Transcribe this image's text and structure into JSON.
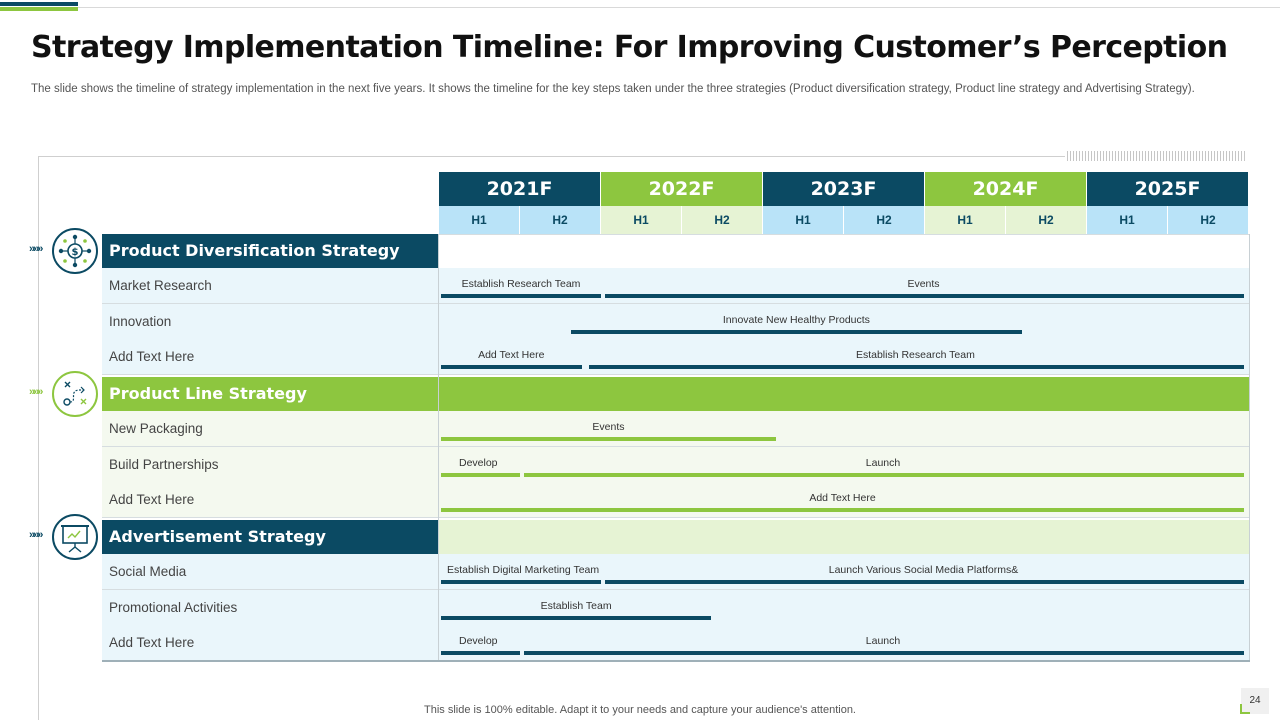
{
  "title": "Strategy Implementation Timeline: For Improving Customer’s Perception",
  "subtitle": "The slide shows the timeline of strategy implementation in the next five years. It shows the timeline for the key steps taken under the three strategies (Product diversification strategy, Product line strategy and Advertising Strategy).",
  "colors": {
    "dark": "#0b4a63",
    "green": "#8dc63f",
    "light_blue": "#b9e3f8",
    "light_green": "#e6f3d4"
  },
  "years": [
    "2021F",
    "2022F",
    "2023F",
    "2024F",
    "2025F"
  ],
  "halves": [
    "H1",
    "H2"
  ],
  "sections": [
    {
      "title": "Product Diversification Strategy",
      "icon": "dollar-network-icon",
      "arrows": "»»»",
      "rows": [
        {
          "label": "Market Research",
          "bars": [
            {
              "text": "Establish Research Team",
              "start": 0,
              "end": 1
            },
            {
              "text": "Events",
              "start": 1,
              "end": 5
            }
          ]
        },
        {
          "label": "Innovation",
          "bars": [
            {
              "text": "Innovate New Healthy Products",
              "start": 0.8,
              "end": 3.6
            }
          ]
        },
        {
          "label": "Add Text Here",
          "bars": [
            {
              "text": "Add Text Here",
              "start": 0,
              "end": 0.88
            },
            {
              "text": "Establish Research Team",
              "start": 0.9,
              "end": 5
            }
          ]
        }
      ]
    },
    {
      "title": "Product Line Strategy",
      "icon": "strategy-plan-icon",
      "arrows": "»»»",
      "rows": [
        {
          "label": "New Packaging",
          "bars": [
            {
              "text": "Events",
              "start": 0,
              "end": 2.08
            }
          ]
        },
        {
          "label": "Build Partnerships",
          "bars": [
            {
              "text": "Develop",
              "start": 0,
              "end": 0.5
            },
            {
              "text": "Launch",
              "start": 0.5,
              "end": 5
            }
          ]
        },
        {
          "label": "Add Text Here",
          "bars": [
            {
              "text": "Add Text Here",
              "start": 0,
              "end": 5
            }
          ]
        }
      ]
    },
    {
      "title": "Advertisement Strategy",
      "icon": "presentation-board-icon",
      "arrows": "»»»",
      "rows": [
        {
          "label": "Social Media",
          "bars": [
            {
              "text": "Establish Digital Marketing Team",
              "start": 0,
              "end": 1
            },
            {
              "text": "Launch Various Social Media Platforms&",
              "start": 1,
              "end": 5
            }
          ]
        },
        {
          "label": "Promotional Activities",
          "bars": [
            {
              "text": "Establish Team",
              "start": 0,
              "end": 1.68
            }
          ]
        },
        {
          "label": "Add Text Here",
          "bars": [
            {
              "text": "Develop",
              "start": 0,
              "end": 0.5
            },
            {
              "text": "Launch",
              "start": 0.5,
              "end": 5
            }
          ]
        }
      ]
    }
  ],
  "footer": "This slide is 100% editable. Adapt it to your needs and capture your audience's attention.",
  "page_number": "24"
}
